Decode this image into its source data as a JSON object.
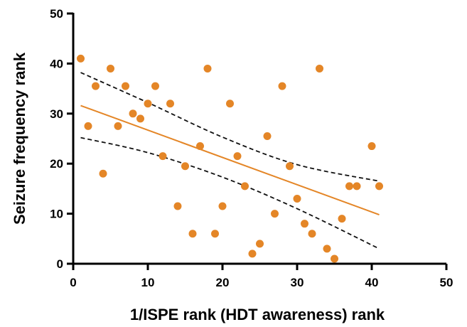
{
  "chart_data": {
    "type": "scatter",
    "title": "",
    "xlabel": "1/ISPE rank (HDT awareness) rank",
    "ylabel": "Seizure frequency rank",
    "xlim": [
      0,
      50
    ],
    "ylim": [
      0,
      50
    ],
    "xticks": [
      0,
      10,
      20,
      30,
      40,
      50
    ],
    "yticks": [
      0,
      10,
      20,
      30,
      40,
      50
    ],
    "grid": false,
    "legend": "none",
    "colors": {
      "points": "#E48627",
      "fit_line": "#E48627",
      "confidence_band": "#111111",
      "axes": "#000000"
    },
    "series": [
      {
        "points": [
          [
            1,
            41
          ],
          [
            2,
            27.5
          ],
          [
            3,
            35.5
          ],
          [
            4,
            18
          ],
          [
            5,
            39
          ],
          [
            6,
            27.5
          ],
          [
            7,
            35.5
          ],
          [
            8,
            30
          ],
          [
            9,
            29
          ],
          [
            10,
            32
          ],
          [
            11,
            35.5
          ],
          [
            12,
            21.5
          ],
          [
            13,
            32
          ],
          [
            14,
            11.5
          ],
          [
            15,
            19.5
          ],
          [
            16,
            6
          ],
          [
            17,
            23.5
          ],
          [
            18,
            39
          ],
          [
            19,
            6
          ],
          [
            20,
            11.5
          ],
          [
            21,
            32
          ],
          [
            22,
            21.5
          ],
          [
            23,
            15.5
          ],
          [
            24,
            2
          ],
          [
            25,
            4
          ],
          [
            26,
            25.5
          ],
          [
            27,
            10
          ],
          [
            28,
            35.5
          ],
          [
            29,
            19.5
          ],
          [
            30,
            13
          ],
          [
            31,
            8
          ],
          [
            32,
            6
          ],
          [
            33,
            39
          ],
          [
            34,
            3
          ],
          [
            35,
            1
          ],
          [
            36,
            9
          ],
          [
            37,
            15.5
          ],
          [
            38,
            15.5
          ],
          [
            40,
            23.5
          ],
          [
            41,
            15.5
          ]
        ]
      }
    ],
    "fit_line": {
      "x": [
        1,
        41
      ],
      "y": [
        31.6,
        9.8
      ]
    },
    "confidence_band": {
      "upper": [
        [
          1,
          38.2
        ],
        [
          10,
          32.2
        ],
        [
          20,
          25.3
        ],
        [
          30,
          19.8
        ],
        [
          41,
          16.5
        ]
      ],
      "lower": [
        [
          1,
          25.2
        ],
        [
          10,
          22.2
        ],
        [
          20,
          17.3
        ],
        [
          30,
          11.0
        ],
        [
          41,
          3.0
        ]
      ]
    }
  }
}
